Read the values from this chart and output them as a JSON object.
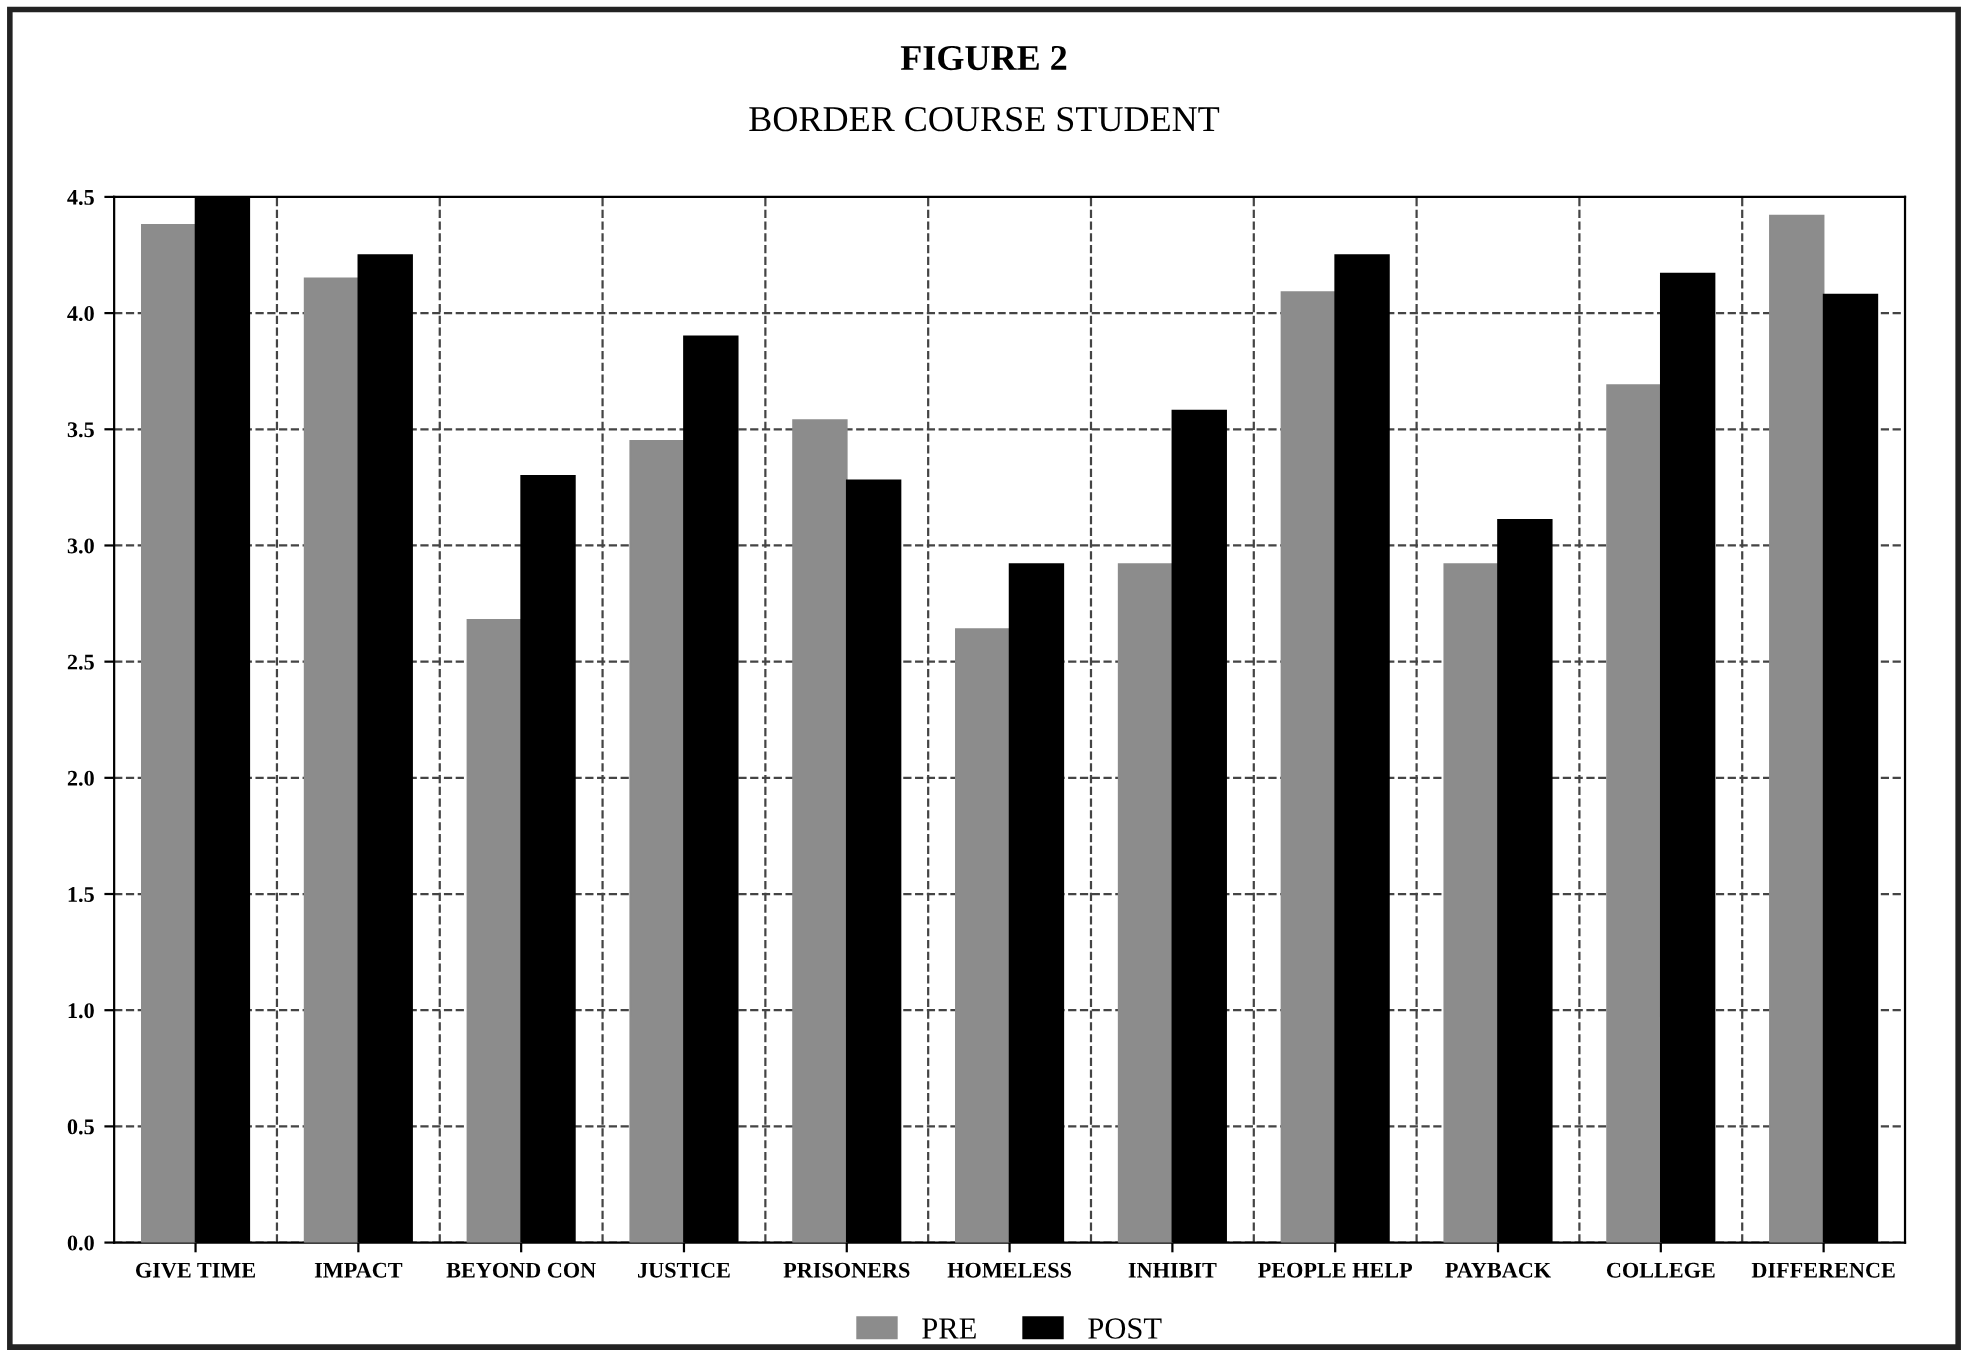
{
  "chart_data": {
    "type": "bar",
    "title": "FIGURE 2",
    "subtitle": "BORDER COURSE STUDENT",
    "categories": [
      "GIVE TIME",
      "IMPACT",
      "BEYOND CON",
      "JUSTICE",
      "PRISONERS",
      "HOMELESS",
      "INHIBIT",
      "PEOPLE HELP",
      "PAYBACK",
      "COLLEGE",
      "DIFFERENCE"
    ],
    "series": [
      {
        "name": "PRE",
        "color": "#8c8c8c",
        "values": [
          4.38,
          4.15,
          2.68,
          3.45,
          3.54,
          2.64,
          2.92,
          4.09,
          2.92,
          3.69,
          4.42
        ]
      },
      {
        "name": "POST",
        "color": "#000000",
        "values": [
          4.5,
          4.25,
          3.3,
          3.9,
          3.28,
          2.92,
          3.58,
          4.25,
          3.11,
          4.17,
          4.08
        ]
      }
    ],
    "ylim": [
      0,
      4.5
    ],
    "yticks": [
      {
        "value": 0,
        "label": "0.0"
      },
      {
        "value": 0.5,
        "label": "0.5"
      },
      {
        "value": 1,
        "label": "1.0"
      },
      {
        "value": 1.5,
        "label": "1.5"
      },
      {
        "value": 2,
        "label": "2.0"
      },
      {
        "value": 2.5,
        "label": "2.5"
      },
      {
        "value": 3,
        "label": "3.0"
      },
      {
        "value": 3.5,
        "label": "3.5"
      },
      {
        "value": 4,
        "label": "4.0"
      },
      {
        "value": 4.5,
        "label": "4.5"
      }
    ],
    "grid": true,
    "legend": "bottom"
  }
}
